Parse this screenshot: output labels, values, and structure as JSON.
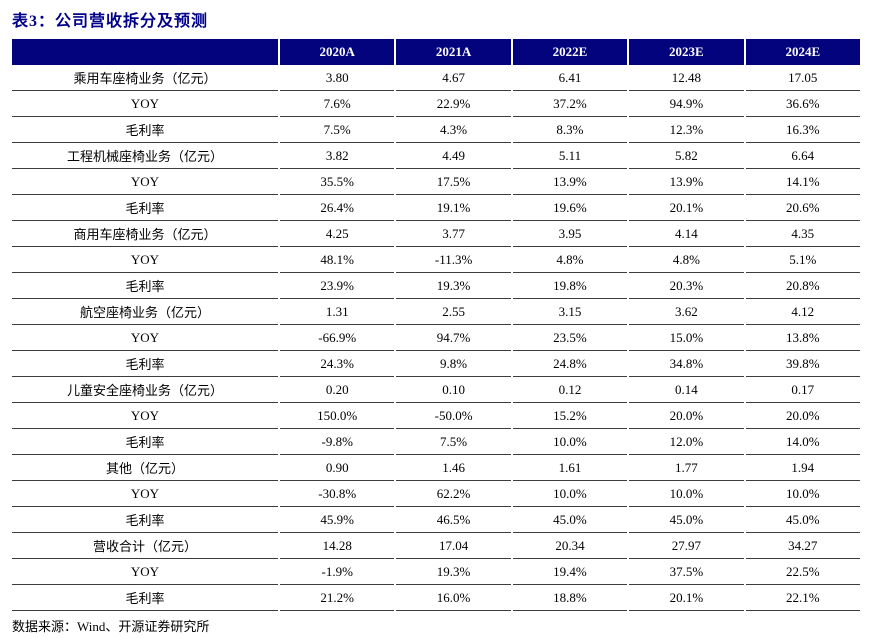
{
  "title": "表3：公司营收拆分及预测",
  "source": "数据来源：Wind、开源证券研究所",
  "colors": {
    "header_bg": "#03037E",
    "title_color": "#00008B",
    "row_line": "#3c3c3c"
  },
  "table": {
    "columns": [
      "",
      "2020A",
      "2021A",
      "2022E",
      "2023E",
      "2024E"
    ],
    "rows": [
      {
        "label": "乘用车座椅业务（亿元）",
        "values": [
          "3.80",
          "4.67",
          "6.41",
          "12.48",
          "17.05"
        ]
      },
      {
        "label": "YOY",
        "values": [
          "7.6%",
          "22.9%",
          "37.2%",
          "94.9%",
          "36.6%"
        ]
      },
      {
        "label": "毛利率",
        "values": [
          "7.5%",
          "4.3%",
          "8.3%",
          "12.3%",
          "16.3%"
        ]
      },
      {
        "label": "工程机械座椅业务（亿元）",
        "values": [
          "3.82",
          "4.49",
          "5.11",
          "5.82",
          "6.64"
        ]
      },
      {
        "label": "YOY",
        "values": [
          "35.5%",
          "17.5%",
          "13.9%",
          "13.9%",
          "14.1%"
        ]
      },
      {
        "label": "毛利率",
        "values": [
          "26.4%",
          "19.1%",
          "19.6%",
          "20.1%",
          "20.6%"
        ]
      },
      {
        "label": "商用车座椅业务（亿元）",
        "values": [
          "4.25",
          "3.77",
          "3.95",
          "4.14",
          "4.35"
        ]
      },
      {
        "label": "YOY",
        "values": [
          "48.1%",
          "-11.3%",
          "4.8%",
          "4.8%",
          "5.1%"
        ]
      },
      {
        "label": "毛利率",
        "values": [
          "23.9%",
          "19.3%",
          "19.8%",
          "20.3%",
          "20.8%"
        ]
      },
      {
        "label": "航空座椅业务（亿元）",
        "values": [
          "1.31",
          "2.55",
          "3.15",
          "3.62",
          "4.12"
        ]
      },
      {
        "label": "YOY",
        "values": [
          "-66.9%",
          "94.7%",
          "23.5%",
          "15.0%",
          "13.8%"
        ]
      },
      {
        "label": "毛利率",
        "values": [
          "24.3%",
          "9.8%",
          "24.8%",
          "34.8%",
          "39.8%"
        ]
      },
      {
        "label": "儿童安全座椅业务（亿元）",
        "values": [
          "0.20",
          "0.10",
          "0.12",
          "0.14",
          "0.17"
        ]
      },
      {
        "label": "YOY",
        "values": [
          "150.0%",
          "-50.0%",
          "15.2%",
          "20.0%",
          "20.0%"
        ]
      },
      {
        "label": "毛利率",
        "values": [
          "-9.8%",
          "7.5%",
          "10.0%",
          "12.0%",
          "14.0%"
        ]
      },
      {
        "label": "其他（亿元）",
        "values": [
          "0.90",
          "1.46",
          "1.61",
          "1.77",
          "1.94"
        ]
      },
      {
        "label": "YOY",
        "values": [
          "-30.8%",
          "62.2%",
          "10.0%",
          "10.0%",
          "10.0%"
        ]
      },
      {
        "label": "毛利率",
        "values": [
          "45.9%",
          "46.5%",
          "45.0%",
          "45.0%",
          "45.0%"
        ]
      },
      {
        "label": "营收合计（亿元）",
        "values": [
          "14.28",
          "17.04",
          "20.34",
          "27.97",
          "34.27"
        ]
      },
      {
        "label": "YOY",
        "values": [
          "-1.9%",
          "19.3%",
          "19.4%",
          "37.5%",
          "22.5%"
        ]
      },
      {
        "label": "毛利率",
        "values": [
          "21.2%",
          "16.0%",
          "18.8%",
          "20.1%",
          "22.1%"
        ]
      }
    ]
  }
}
